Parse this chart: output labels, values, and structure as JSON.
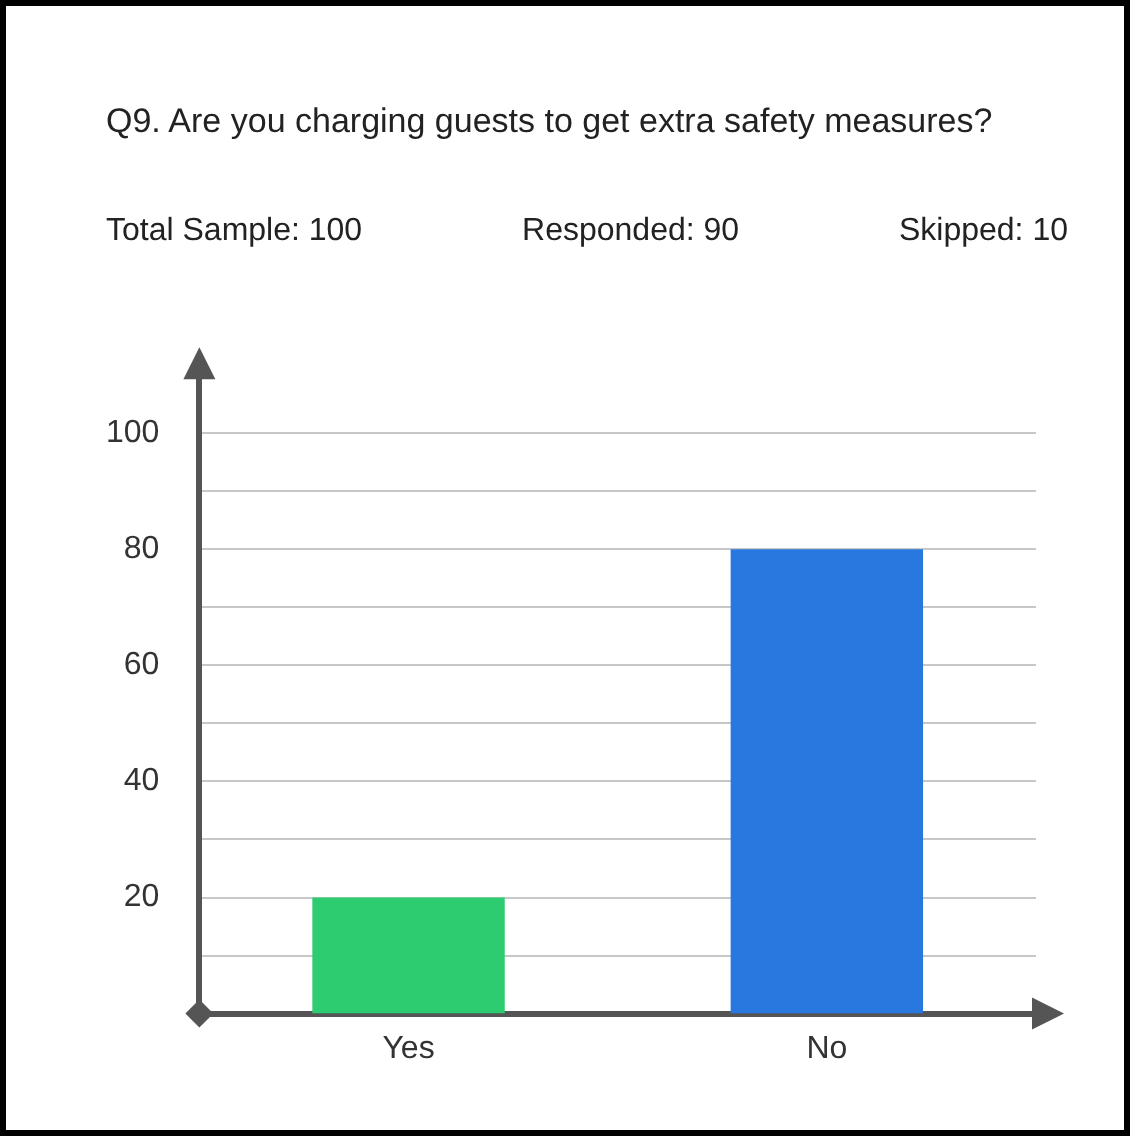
{
  "chart_data": {
    "type": "bar",
    "title": "Q9. Are you charging guests to get extra safety measures?",
    "annotations": [
      "Total Sample: 100",
      "Responded: 90",
      "Skipped: 10"
    ],
    "categories": [
      "Yes",
      "No"
    ],
    "values": [
      20,
      80
    ],
    "colors": [
      "#2ecc71",
      "#2878e0"
    ],
    "ylim": [
      0,
      110
    ],
    "yticks": [
      {
        "value": 10,
        "label": null
      },
      20,
      {
        "value": 30,
        "label": null
      },
      40,
      {
        "value": 50,
        "label": null
      },
      60,
      {
        "value": 70,
        "label": null
      },
      80,
      {
        "value": 90,
        "label": null
      },
      100
    ],
    "grid": "y",
    "legend": false
  }
}
